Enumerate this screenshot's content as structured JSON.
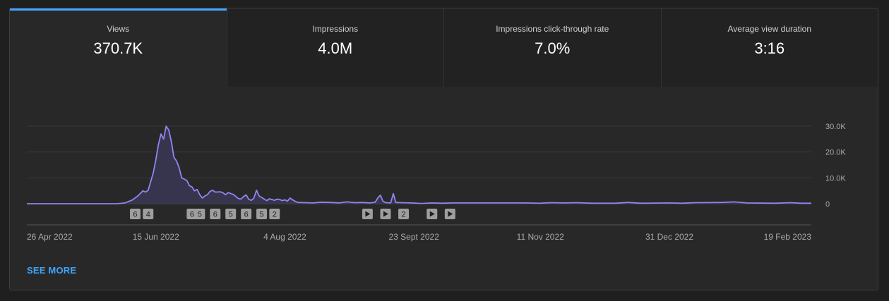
{
  "metrics": [
    {
      "label": "Views",
      "value": "370.7K"
    },
    {
      "label": "Impressions",
      "value": "4.0M"
    },
    {
      "label": "Impressions click-through rate",
      "value": "7.0%"
    },
    {
      "label": "Average view duration",
      "value": "3:16"
    }
  ],
  "see_more_label": "SEE MORE",
  "colors": {
    "accent": "#3ea6ff",
    "line": "#8f85f0",
    "area": "#3a3754"
  },
  "chart_data": {
    "type": "area",
    "xlabel": "",
    "ylabel": "",
    "ylim": [
      0,
      30000
    ],
    "yticks": [
      0,
      10000,
      20000,
      30000
    ],
    "ytick_labels": [
      "0",
      "10.0K",
      "20.0K",
      "30.0K"
    ],
    "x_range": [
      "2022-04-26",
      "2023-02-24"
    ],
    "xticks": [
      {
        "date": "2022-04-26",
        "label": "26 Apr 2022"
      },
      {
        "date": "2022-06-15",
        "label": "15 Jun 2022"
      },
      {
        "date": "2022-08-04",
        "label": "4 Aug 2022"
      },
      {
        "date": "2022-09-23",
        "label": "23 Sept 2022"
      },
      {
        "date": "2022-11-11",
        "label": "11 Nov 2022"
      },
      {
        "date": "2022-12-31",
        "label": "31 Dec 2022"
      },
      {
        "date": "2023-02-19",
        "label": "19 Feb 2023"
      }
    ],
    "grid": true,
    "series": [
      {
        "points": [
          [
            "2022-04-26",
            0
          ],
          [
            "2022-05-31",
            0
          ],
          [
            "2022-06-03",
            300
          ],
          [
            "2022-06-06",
            1500
          ],
          [
            "2022-06-08",
            3000
          ],
          [
            "2022-06-10",
            5000
          ],
          [
            "2022-06-11",
            4500
          ],
          [
            "2022-06-12",
            5200
          ],
          [
            "2022-06-14",
            12000
          ],
          [
            "2022-06-15",
            17000
          ],
          [
            "2022-06-16",
            23000
          ],
          [
            "2022-06-17",
            27000
          ],
          [
            "2022-06-18",
            25000
          ],
          [
            "2022-06-19",
            30000
          ],
          [
            "2022-06-20",
            28500
          ],
          [
            "2022-06-21",
            24000
          ],
          [
            "2022-06-22",
            18000
          ],
          [
            "2022-06-23",
            16500
          ],
          [
            "2022-06-24",
            14000
          ],
          [
            "2022-06-25",
            10000
          ],
          [
            "2022-06-27",
            9000
          ],
          [
            "2022-06-28",
            7000
          ],
          [
            "2022-06-29",
            6500
          ],
          [
            "2022-06-30",
            5000
          ],
          [
            "2022-07-01",
            5500
          ],
          [
            "2022-07-02",
            3500
          ],
          [
            "2022-07-03",
            2200
          ],
          [
            "2022-07-04",
            3000
          ],
          [
            "2022-07-05",
            3500
          ],
          [
            "2022-07-06",
            4800
          ],
          [
            "2022-07-07",
            5200
          ],
          [
            "2022-07-08",
            4500
          ],
          [
            "2022-07-10",
            4600
          ],
          [
            "2022-07-11",
            4200
          ],
          [
            "2022-07-12",
            3500
          ],
          [
            "2022-07-13",
            4300
          ],
          [
            "2022-07-15",
            3600
          ],
          [
            "2022-07-16",
            2800
          ],
          [
            "2022-07-17",
            2000
          ],
          [
            "2022-07-18",
            1800
          ],
          [
            "2022-07-19",
            2800
          ],
          [
            "2022-07-20",
            3400
          ],
          [
            "2022-07-21",
            1700
          ],
          [
            "2022-07-22",
            1300
          ],
          [
            "2022-07-23",
            2200
          ],
          [
            "2022-07-24",
            5200
          ],
          [
            "2022-07-25",
            3000
          ],
          [
            "2022-07-27",
            1800
          ],
          [
            "2022-07-28",
            1200
          ],
          [
            "2022-07-29",
            1900
          ],
          [
            "2022-07-30",
            1600
          ],
          [
            "2022-07-31",
            1300
          ],
          [
            "2022-08-01",
            1800
          ],
          [
            "2022-08-02",
            1600
          ],
          [
            "2022-08-03",
            1200
          ],
          [
            "2022-08-04",
            1500
          ],
          [
            "2022-08-05",
            1000
          ],
          [
            "2022-08-06",
            2200
          ],
          [
            "2022-08-07",
            1500
          ],
          [
            "2022-08-08",
            900
          ],
          [
            "2022-08-09",
            500
          ],
          [
            "2022-08-12",
            400
          ],
          [
            "2022-08-15",
            300
          ],
          [
            "2022-08-18",
            600
          ],
          [
            "2022-08-22",
            500
          ],
          [
            "2022-08-25",
            300
          ],
          [
            "2022-08-28",
            700
          ],
          [
            "2022-08-31",
            400
          ],
          [
            "2022-09-03",
            500
          ],
          [
            "2022-09-06",
            300
          ],
          [
            "2022-09-08",
            600
          ],
          [
            "2022-09-09",
            2200
          ],
          [
            "2022-09-10",
            3300
          ],
          [
            "2022-09-11",
            1000
          ],
          [
            "2022-09-12",
            400
          ],
          [
            "2022-09-14",
            300
          ],
          [
            "2022-09-15",
            3900
          ],
          [
            "2022-09-16",
            500
          ],
          [
            "2022-09-18",
            400
          ],
          [
            "2022-09-22",
            300
          ],
          [
            "2022-09-26",
            100
          ],
          [
            "2022-09-30",
            300
          ],
          [
            "2022-10-04",
            200
          ],
          [
            "2022-10-08",
            300
          ],
          [
            "2022-10-15",
            300
          ],
          [
            "2022-10-25",
            300
          ],
          [
            "2022-11-05",
            300
          ],
          [
            "2022-11-11",
            200
          ],
          [
            "2022-11-15",
            400
          ],
          [
            "2022-11-20",
            300
          ],
          [
            "2022-11-25",
            400
          ],
          [
            "2022-12-01",
            200
          ],
          [
            "2022-12-10",
            200
          ],
          [
            "2022-12-15",
            500
          ],
          [
            "2022-12-20",
            200
          ],
          [
            "2022-12-31",
            300
          ],
          [
            "2023-01-05",
            200
          ],
          [
            "2023-01-10",
            400
          ],
          [
            "2023-01-20",
            500
          ],
          [
            "2023-01-25",
            700
          ],
          [
            "2023-01-30",
            300
          ],
          [
            "2023-02-10",
            200
          ],
          [
            "2023-02-16",
            400
          ],
          [
            "2023-02-20",
            200
          ],
          [
            "2023-02-24",
            200
          ]
        ]
      }
    ],
    "annotations": [
      {
        "date": "2022-06-07",
        "label": "6"
      },
      {
        "date": "2022-06-12",
        "label": "4"
      },
      {
        "date": "2022-06-29",
        "label": "6"
      },
      {
        "date": "2022-07-02",
        "label": "5"
      },
      {
        "date": "2022-07-08",
        "label": "6"
      },
      {
        "date": "2022-07-14",
        "label": "5"
      },
      {
        "date": "2022-07-20",
        "label": "6"
      },
      {
        "date": "2022-07-26",
        "label": "5"
      },
      {
        "date": "2022-07-31",
        "label": "2"
      },
      {
        "date": "2022-09-05",
        "icon": "play-icon"
      },
      {
        "date": "2022-09-12",
        "icon": "play-icon"
      },
      {
        "date": "2022-09-19",
        "label": "2"
      },
      {
        "date": "2022-09-30",
        "icon": "play-icon"
      },
      {
        "date": "2022-10-07",
        "icon": "play-icon"
      }
    ]
  }
}
